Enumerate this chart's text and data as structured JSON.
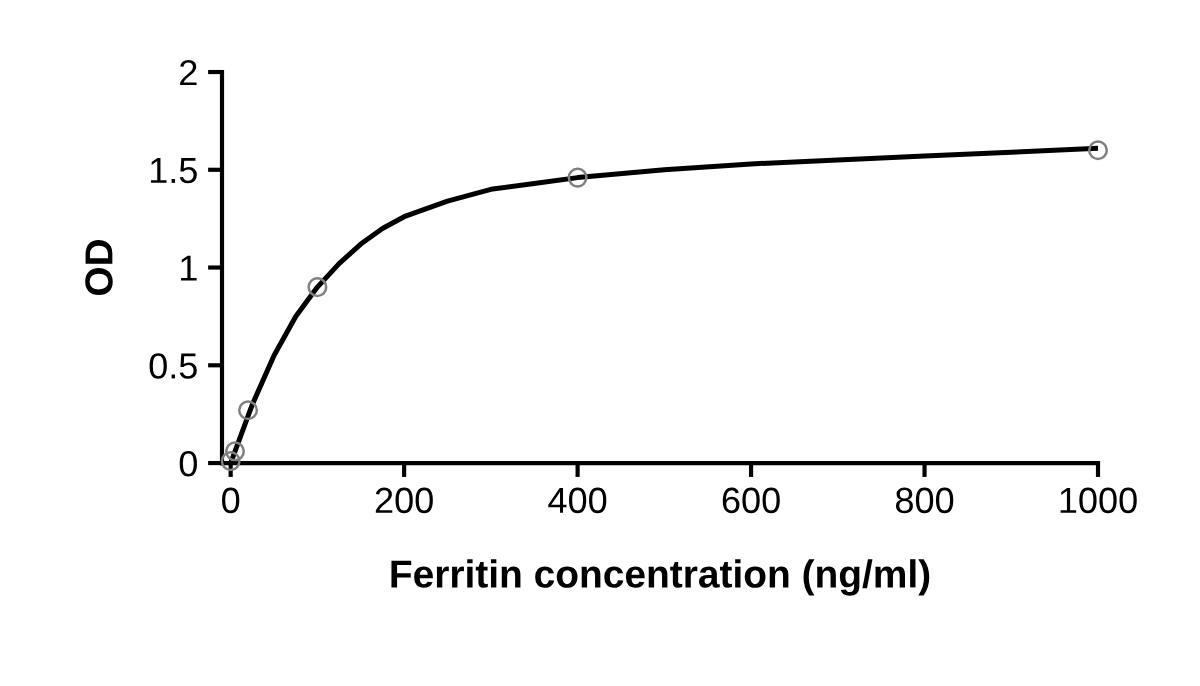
{
  "chart_data": {
    "type": "scatter",
    "xlabel": "Ferritin concentration (ng/ml)",
    "ylabel": "OD",
    "xlim": [
      -10,
      1000
    ],
    "xticks": [
      0,
      200,
      400,
      600,
      800,
      1000
    ],
    "ylim": [
      0,
      2
    ],
    "yticks": [
      0,
      0.5,
      1,
      1.5,
      2
    ],
    "grid": false,
    "series": [
      {
        "color": "#808080",
        "marker": "circle",
        "x": [
          0,
          5,
          20,
          100,
          400,
          1000
        ],
        "values": [
          0.01,
          0.06,
          0.27,
          0.9,
          1.46,
          1.6
        ]
      },
      {
        "type": "line",
        "color": "#000000",
        "marker": "none",
        "line_style": "solid",
        "x": [
          0,
          25,
          50,
          75,
          100,
          125,
          150,
          175,
          200,
          250,
          300,
          350,
          400,
          500,
          600,
          700,
          800,
          900,
          1000
        ],
        "values": [
          0.0,
          0.3,
          0.55,
          0.75,
          0.9,
          1.02,
          1.12,
          1.2,
          1.26,
          1.34,
          1.4,
          1.43,
          1.46,
          1.5,
          1.53,
          1.55,
          1.57,
          1.59,
          1.61
        ]
      }
    ]
  }
}
